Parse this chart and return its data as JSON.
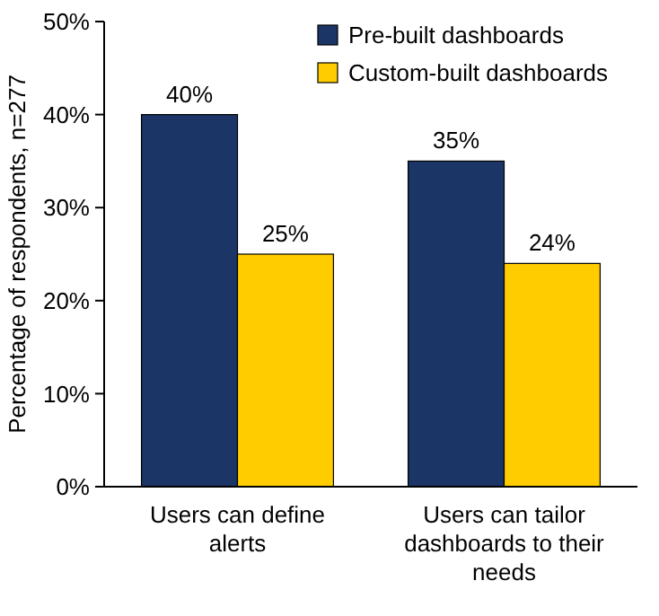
{
  "chart_data": {
    "type": "bar",
    "ylabel": "Percentage of respondents, n=277",
    "categories": [
      "Users can define alerts",
      "Users can tailor dashboards to their needs"
    ],
    "series": [
      {
        "name": "Pre-built dashboards",
        "color": "#1b3567",
        "values": [
          40,
          35
        ],
        "value_labels": [
          "40%",
          "35%"
        ]
      },
      {
        "name": "Custom-built dashboards",
        "color": "#ffcc00",
        "values": [
          25,
          24
        ],
        "value_labels": [
          "25%",
          "24%"
        ]
      }
    ],
    "ylim": [
      0,
      50
    ],
    "yticks": [
      {
        "value": 0,
        "label": "0%"
      },
      {
        "value": 10,
        "label": "10%"
      },
      {
        "value": 20,
        "label": "20%"
      },
      {
        "value": 30,
        "label": "30%"
      },
      {
        "value": 40,
        "label": "40%"
      },
      {
        "value": 50,
        "label": "50%"
      }
    ],
    "grid": false,
    "legend": "top right"
  }
}
